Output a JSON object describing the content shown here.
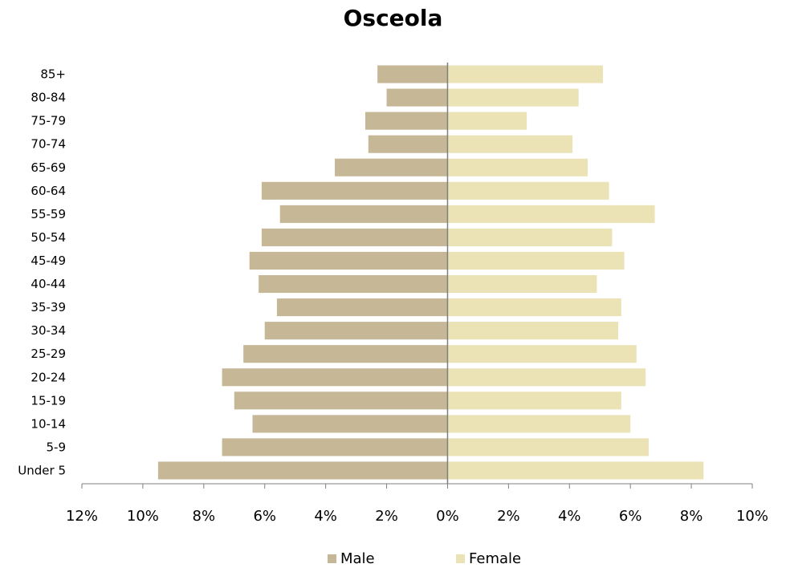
{
  "title": "Osceola",
  "chart_data": {
    "type": "bar",
    "orientation": "horizontal",
    "title": "Osceola",
    "categories": [
      "85+",
      "80-84",
      "75-79",
      "70-74",
      "65-69",
      "60-64",
      "55-59",
      "50-54",
      "45-49",
      "40-44",
      "35-39",
      "30-34",
      "25-29",
      "20-24",
      "15-19",
      "10-14",
      "5-9",
      "Under 5"
    ],
    "series": [
      {
        "name": "Male",
        "color": "#c6b897",
        "values": [
          2.3,
          2.0,
          2.7,
          2.6,
          3.7,
          6.1,
          5.5,
          6.1,
          6.5,
          6.2,
          5.6,
          6.0,
          6.7,
          7.4,
          7.0,
          6.4,
          7.4,
          9.5
        ]
      },
      {
        "name": "Female",
        "color": "#ebe2b6",
        "values": [
          5.1,
          4.3,
          2.6,
          4.1,
          4.6,
          5.3,
          6.8,
          5.4,
          5.8,
          4.9,
          5.7,
          5.6,
          6.2,
          6.5,
          5.7,
          6.0,
          6.6,
          8.4
        ]
      }
    ],
    "xlim": [
      -12,
      10
    ],
    "x_ticks": [
      -12,
      -10,
      -8,
      -6,
      -4,
      -2,
      0,
      2,
      4,
      6,
      8,
      10
    ],
    "x_tick_labels": [
      "12%",
      "10%",
      "8%",
      "6%",
      "4%",
      "2%",
      "0%",
      "2%",
      "4%",
      "6%",
      "8%",
      "10%"
    ],
    "legend_position": "bottom",
    "grid": false
  }
}
